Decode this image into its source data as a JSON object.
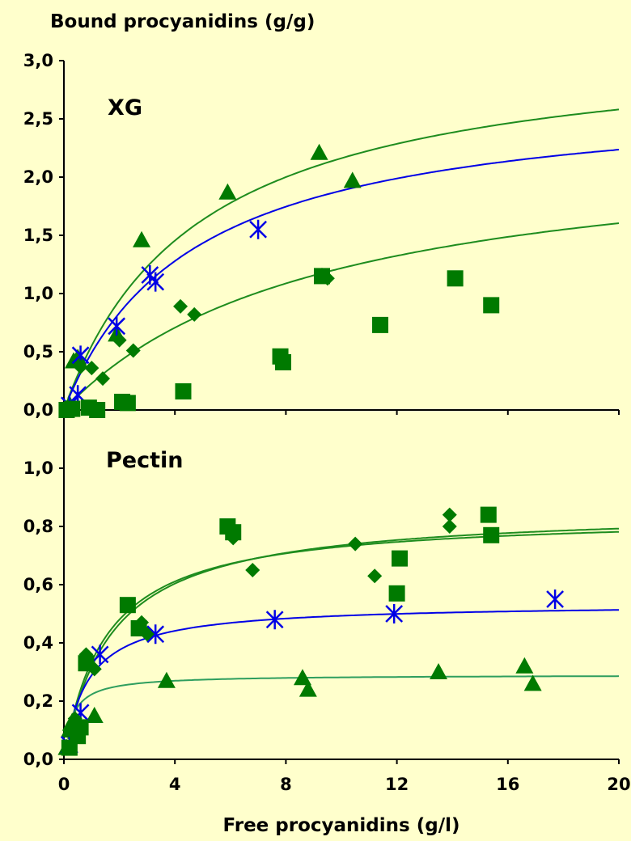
{
  "chart_data": [
    {
      "type": "scatter",
      "panel_label": "XG",
      "title": "",
      "ylabel": "Bound procyanidins (g/g)",
      "xlabel": "Free procyanidins (g/l)",
      "xlim": [
        0,
        20
      ],
      "ylim": [
        0,
        3.0
      ],
      "x_ticks": [
        "0",
        "4",
        "8",
        "12",
        "16",
        "20"
      ],
      "y_ticks": [
        "0,0",
        "0,5",
        "1,0",
        "1,5",
        "2,0",
        "2,5",
        "3,0"
      ],
      "grid": false,
      "legend": "none",
      "colors": {
        "green": "#007A00",
        "blue": "#0000E6",
        "line_green": "#1E8C1E"
      },
      "series": [
        {
          "marker": "triangle",
          "color": "#007A00",
          "points": [
            [
              0.2,
              0.05
            ],
            [
              0.35,
              0.42
            ],
            [
              0.5,
              0.45
            ],
            [
              1.9,
              0.65
            ],
            [
              2.8,
              1.46
            ],
            [
              5.9,
              1.87
            ],
            [
              9.2,
              2.21
            ],
            [
              10.4,
              1.97
            ]
          ]
        },
        {
          "marker": "asterisk",
          "color": "#0000E6",
          "points": [
            [
              0.2,
              0.04
            ],
            [
              0.5,
              0.13
            ],
            [
              0.6,
              0.47
            ],
            [
              1.9,
              0.72
            ],
            [
              3.1,
              1.16
            ],
            [
              3.3,
              1.1
            ],
            [
              7.0,
              1.55
            ]
          ]
        },
        {
          "marker": "diamond",
          "color": "#007A00",
          "points": [
            [
              0.2,
              0.02
            ],
            [
              0.6,
              0.37
            ],
            [
              1.0,
              0.36
            ],
            [
              1.4,
              0.27
            ],
            [
              2.0,
              0.6
            ],
            [
              2.5,
              0.51
            ],
            [
              4.2,
              0.89
            ],
            [
              4.7,
              0.82
            ],
            [
              9.3,
              1.16
            ],
            [
              9.5,
              1.13
            ]
          ]
        },
        {
          "marker": "square",
          "color": "#007A00",
          "points": [
            [
              0.1,
              0.0
            ],
            [
              0.3,
              0.01
            ],
            [
              0.9,
              0.02
            ],
            [
              1.2,
              0.0
            ],
            [
              2.1,
              0.07
            ],
            [
              2.3,
              0.06
            ],
            [
              4.3,
              0.16
            ],
            [
              7.8,
              0.46
            ],
            [
              7.9,
              0.41
            ],
            [
              9.3,
              1.15
            ],
            [
              11.4,
              0.73
            ],
            [
              14.1,
              1.13
            ],
            [
              15.4,
              0.9
            ]
          ]
        }
      ],
      "fits": [
        {
          "color": "#1E8C1E",
          "qmax": 3.2,
          "k": 4.8
        },
        {
          "color": "#0000E6",
          "qmax": 2.75,
          "k": 4.6
        },
        {
          "color": "#1E8C1E",
          "qmax": 2.35,
          "k": 9.3
        }
      ]
    },
    {
      "type": "scatter",
      "panel_label": "Pectin",
      "title": "",
      "ylabel": "",
      "xlabel": "Free procyanidins (g/l)",
      "xlim": [
        0,
        20
      ],
      "ylim": [
        0,
        1.2
      ],
      "x_ticks": [
        "0",
        "4",
        "8",
        "12",
        "16",
        "20"
      ],
      "y_ticks": [
        "0,0",
        "0,2",
        "0,4",
        "0,6",
        "0,8",
        "1,0"
      ],
      "grid": false,
      "legend": "none",
      "colors": {
        "green": "#007A00",
        "blue": "#0000E6",
        "line_green": "#1E8C1E"
      },
      "series": [
        {
          "marker": "triangle",
          "color": "#007A00",
          "points": [
            [
              0.1,
              0.04
            ],
            [
              0.2,
              0.1
            ],
            [
              0.3,
              0.13
            ],
            [
              1.1,
              0.15
            ],
            [
              3.7,
              0.27
            ],
            [
              8.6,
              0.28
            ],
            [
              8.8,
              0.24
            ],
            [
              13.5,
              0.3
            ],
            [
              16.6,
              0.32
            ],
            [
              16.9,
              0.26
            ]
          ]
        },
        {
          "marker": "asterisk",
          "color": "#0000E6",
          "points": [
            [
              0.2,
              0.05
            ],
            [
              0.6,
              0.16
            ],
            [
              1.3,
              0.36
            ],
            [
              3.3,
              0.43
            ],
            [
              7.6,
              0.48
            ],
            [
              11.9,
              0.5
            ],
            [
              17.7,
              0.55
            ]
          ]
        },
        {
          "marker": "diamond",
          "color": "#007A00",
          "points": [
            [
              0.2,
              0.1
            ],
            [
              0.4,
              0.14
            ],
            [
              0.8,
              0.36
            ],
            [
              1.1,
              0.31
            ],
            [
              2.8,
              0.47
            ],
            [
              3.0,
              0.43
            ],
            [
              6.1,
              0.76
            ],
            [
              6.8,
              0.65
            ],
            [
              10.5,
              0.74
            ],
            [
              11.2,
              0.63
            ],
            [
              13.9,
              0.8
            ],
            [
              13.9,
              0.84
            ]
          ]
        },
        {
          "marker": "square",
          "color": "#007A00",
          "points": [
            [
              0.2,
              0.04
            ],
            [
              0.5,
              0.08
            ],
            [
              0.6,
              0.11
            ],
            [
              0.8,
              0.33
            ],
            [
              2.3,
              0.53
            ],
            [
              2.7,
              0.45
            ],
            [
              5.9,
              0.8
            ],
            [
              6.1,
              0.78
            ],
            [
              12.0,
              0.57
            ],
            [
              12.1,
              0.69
            ],
            [
              15.3,
              0.84
            ],
            [
              15.4,
              0.77
            ]
          ]
        }
      ],
      "fits": [
        {
          "color": "#1E8C1E",
          "qmax": 0.86,
          "k": 1.7
        },
        {
          "color": "#1E8C1E",
          "qmax": 0.84,
          "k": 1.5
        },
        {
          "color": "#0000E6",
          "qmax": 0.535,
          "k": 0.85
        },
        {
          "color": "#2E9E5E",
          "qmax": 0.29,
          "k": 0.3
        }
      ]
    }
  ]
}
